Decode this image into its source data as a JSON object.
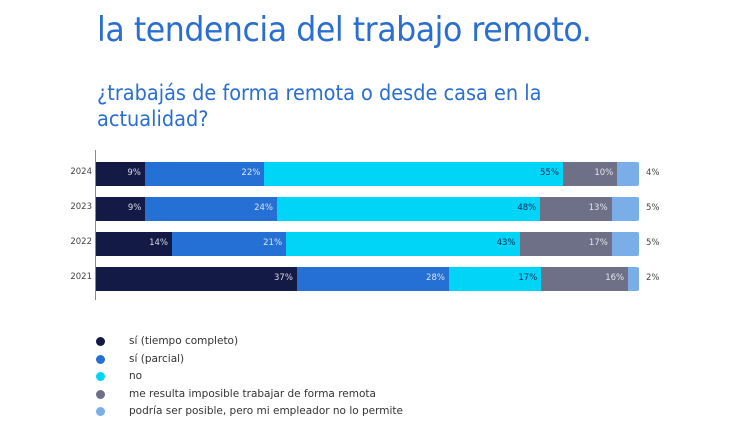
{
  "header": {
    "title": "la tendencia del trabajo remoto.",
    "subtitle": "¿trabajás de forma remota o desde casa en la actualidad?"
  },
  "colors": {
    "full_time": "#121a45",
    "partial": "#2470d4",
    "no": "#00d5f7",
    "impossible": "#6e7087",
    "not_allowed": "#7aaee8"
  },
  "chart_data": {
    "type": "bar",
    "orientation": "horizontal",
    "stacked": true,
    "title": "¿trabajás de forma remota o desde casa en la actualidad?",
    "categories": [
      "2024",
      "2023",
      "2022",
      "2021"
    ],
    "series": [
      {
        "name": "sí (tiempo completo)",
        "color": "#121a45",
        "values": [
          9,
          9,
          14,
          37
        ]
      },
      {
        "name": "sí (parcial)",
        "color": "#2470d4",
        "values": [
          22,
          24,
          21,
          28
        ]
      },
      {
        "name": "no",
        "color": "#00d5f7",
        "values": [
          55,
          48,
          43,
          17
        ]
      },
      {
        "name": "me resulta imposible trabajar de forma remota",
        "color": "#6e7087",
        "values": [
          10,
          13,
          17,
          16
        ]
      },
      {
        "name": "podría ser posible, pero mi empleador no lo permite",
        "color": "#7aaee8",
        "values": [
          4,
          5,
          5,
          2
        ]
      }
    ],
    "xlabel": "",
    "ylabel": "",
    "xlim": [
      0,
      100
    ],
    "grid": false,
    "legend_position": "bottom"
  },
  "rows": [
    {
      "year": "2024",
      "segments": [
        {
          "value": 9,
          "label": "9%"
        },
        {
          "value": 22,
          "label": "22%"
        },
        {
          "value": 55,
          "label": "55%"
        },
        {
          "value": 10,
          "label": "10%"
        },
        {
          "value": 4,
          "label": ""
        }
      ],
      "outside_label": "4%"
    },
    {
      "year": "2023",
      "segments": [
        {
          "value": 9,
          "label": "9%"
        },
        {
          "value": 24,
          "label": "24%"
        },
        {
          "value": 48,
          "label": "48%"
        },
        {
          "value": 13,
          "label": "13%"
        },
        {
          "value": 5,
          "label": ""
        }
      ],
      "outside_label": "5%"
    },
    {
      "year": "2022",
      "segments": [
        {
          "value": 14,
          "label": "14%"
        },
        {
          "value": 21,
          "label": "21%"
        },
        {
          "value": 43,
          "label": "43%"
        },
        {
          "value": 17,
          "label": "17%"
        },
        {
          "value": 5,
          "label": ""
        }
      ],
      "outside_label": "5%"
    },
    {
      "year": "2021",
      "segments": [
        {
          "value": 37,
          "label": "37%"
        },
        {
          "value": 28,
          "label": "28%"
        },
        {
          "value": 17,
          "label": "17%"
        },
        {
          "value": 16,
          "label": "16%"
        },
        {
          "value": 2,
          "label": ""
        }
      ],
      "outside_label": "2%"
    }
  ],
  "legend": [
    {
      "label": "sí (tiempo completo)",
      "icon": "circle-dot-icon"
    },
    {
      "label": "sí (parcial)",
      "icon": "circle-dot-icon"
    },
    {
      "label": "no",
      "icon": "circle-dot-icon"
    },
    {
      "label": "me resulta imposible trabajar de forma remota",
      "icon": "circle-dot-icon"
    },
    {
      "label": "podría ser posible, pero mi empleador no lo permite",
      "icon": "circle-dot-icon"
    }
  ]
}
